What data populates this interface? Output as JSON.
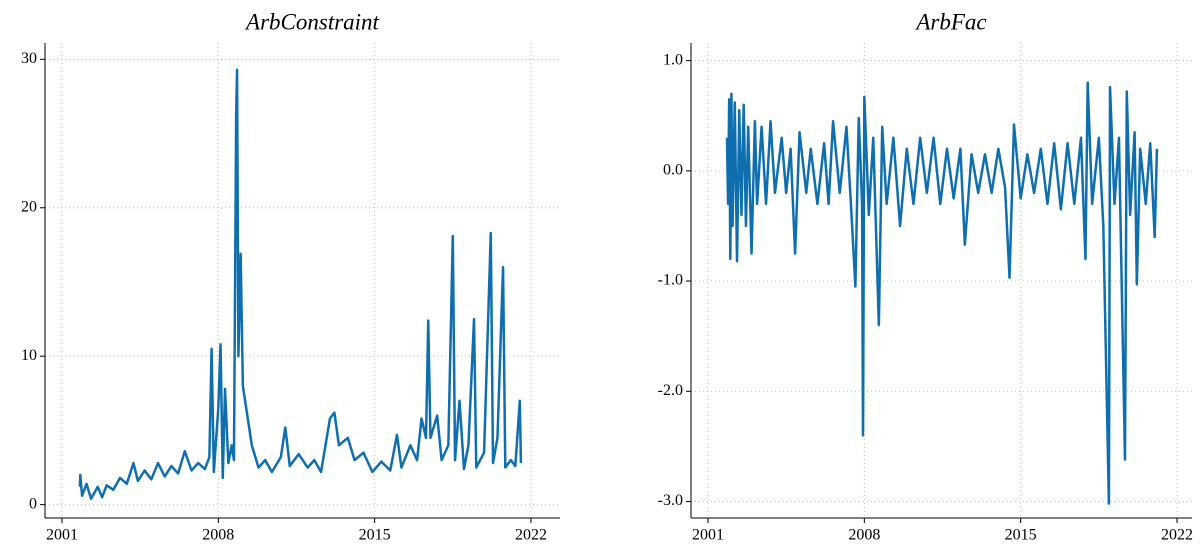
{
  "chart_data": [
    {
      "type": "line",
      "title": "ArbConstraint",
      "color": "#0f6fae",
      "grid": true,
      "xlim": [
        2000.24,
        2023.3
      ],
      "ylim": [
        -0.9,
        31.1
      ],
      "xticks": [
        2001,
        2008,
        2015,
        2022
      ],
      "yticks": [
        0,
        10,
        20,
        30
      ],
      "x": [
        2001.8,
        2001.82,
        2001.9,
        2002.1,
        2002.3,
        2002.6,
        2002.8,
        2003.0,
        2003.3,
        2003.6,
        2003.9,
        2004.2,
        2004.4,
        2004.7,
        2005.0,
        2005.3,
        2005.6,
        2005.9,
        2006.2,
        2006.5,
        2006.8,
        2007.1,
        2007.4,
        2007.6,
        2007.7,
        2007.8,
        2008.0,
        2008.1,
        2008.2,
        2008.3,
        2008.45,
        2008.6,
        2008.7,
        2008.8,
        2008.84,
        2008.9,
        2009.0,
        2009.1,
        2009.3,
        2009.5,
        2009.8,
        2010.1,
        2010.4,
        2010.8,
        2011.0,
        2011.2,
        2011.6,
        2012.0,
        2012.3,
        2012.6,
        2013.0,
        2013.2,
        2013.4,
        2013.8,
        2014.1,
        2014.5,
        2014.9,
        2015.3,
        2015.7,
        2016.0,
        2016.2,
        2016.6,
        2016.9,
        2017.1,
        2017.3,
        2017.4,
        2017.5,
        2017.8,
        2018.0,
        2018.3,
        2018.5,
        2018.6,
        2018.8,
        2019.0,
        2019.2,
        2019.45,
        2019.55,
        2019.9,
        2020.2,
        2020.3,
        2020.5,
        2020.75,
        2020.85,
        2021.1,
        2021.3,
        2021.5,
        2021.55
      ],
      "values": [
        1.2,
        2.0,
        0.6,
        1.4,
        0.4,
        1.2,
        0.5,
        1.3,
        1.0,
        1.8,
        1.4,
        2.8,
        1.6,
        2.3,
        1.7,
        2.8,
        1.9,
        2.6,
        2.1,
        3.6,
        2.3,
        2.8,
        2.4,
        3.2,
        10.5,
        2.2,
        6.5,
        10.8,
        1.8,
        7.8,
        2.8,
        4.0,
        3.0,
        26.3,
        29.3,
        10,
        16.9,
        8,
        6,
        4,
        2.5,
        3.0,
        2.2,
        3.2,
        5.2,
        2.6,
        3.4,
        2.5,
        3.0,
        2.2,
        5.8,
        6.2,
        4.0,
        4.5,
        3.0,
        3.5,
        2.2,
        2.9,
        2.3,
        4.7,
        2.5,
        4.0,
        3.0,
        5.8,
        4.5,
        12.4,
        4.5,
        6.0,
        3.0,
        4.0,
        18.1,
        3.0,
        7.0,
        2.4,
        4.0,
        12.5,
        2.5,
        3.5,
        18.3,
        2.8,
        4.5,
        16.0,
        2.5,
        3.0,
        2.6,
        7.0,
        2.8
      ]
    },
    {
      "type": "line",
      "title": "ArbFac",
      "color": "#0f6fae",
      "grid": true,
      "xlim": [
        2000.24,
        2022.67
      ],
      "ylim": [
        -3.15,
        1.16
      ],
      "xticks": [
        2001,
        2008,
        2015,
        2022
      ],
      "yticks": [
        {
          "value": 1,
          "label": "1.0"
        },
        {
          "value": 0,
          "label": "0.0"
        },
        {
          "value": -1,
          "label": "-1.0"
        },
        {
          "value": -2,
          "label": "-2.0"
        },
        {
          "value": -3,
          "label": "-3.0"
        }
      ],
      "x": [
        2001.85,
        2001.9,
        2001.95,
        2002.0,
        2002.05,
        2002.1,
        2002.2,
        2002.3,
        2002.4,
        2002.5,
        2002.6,
        2002.7,
        2002.8,
        2002.95,
        2003.1,
        2003.2,
        2003.4,
        2003.6,
        2003.8,
        2004.0,
        2004.3,
        2004.5,
        2004.7,
        2004.9,
        2005.1,
        2005.4,
        2005.6,
        2005.9,
        2006.2,
        2006.4,
        2006.6,
        2006.9,
        2007.2,
        2007.4,
        2007.6,
        2007.75,
        2007.9,
        2007.94,
        2008.0,
        2008.2,
        2008.4,
        2008.65,
        2008.8,
        2009.0,
        2009.3,
        2009.6,
        2009.9,
        2010.2,
        2010.5,
        2010.8,
        2011.1,
        2011.4,
        2011.7,
        2012.0,
        2012.3,
        2012.5,
        2012.8,
        2013.1,
        2013.4,
        2013.7,
        2014.0,
        2014.3,
        2014.5,
        2014.7,
        2015.0,
        2015.3,
        2015.6,
        2015.9,
        2016.2,
        2016.5,
        2016.8,
        2017.1,
        2017.4,
        2017.7,
        2017.9,
        2018.0,
        2018.2,
        2018.5,
        2018.7,
        2018.95,
        2019.0,
        2019.2,
        2019.4,
        2019.67,
        2019.75,
        2019.9,
        2020.1,
        2020.2,
        2020.35,
        2020.6,
        2020.8,
        2021.0,
        2021.1
      ],
      "values": [
        0.3,
        -0.3,
        0.65,
        -0.8,
        0.7,
        -0.5,
        0.62,
        -0.82,
        0.55,
        -0.4,
        0.6,
        -0.5,
        0.4,
        -0.75,
        0.45,
        -0.3,
        0.4,
        -0.3,
        0.45,
        -0.2,
        0.3,
        -0.2,
        0.2,
        -0.75,
        0.35,
        -0.2,
        0.2,
        -0.3,
        0.25,
        -0.3,
        0.45,
        -0.2,
        0.4,
        -0.3,
        -1.05,
        0.48,
        -0.3,
        -2.4,
        0.67,
        -0.4,
        0.3,
        -1.4,
        0.4,
        -0.3,
        0.3,
        -0.5,
        0.2,
        -0.3,
        0.3,
        -0.2,
        0.3,
        -0.3,
        0.2,
        -0.25,
        0.2,
        -0.67,
        0.15,
        -0.2,
        0.15,
        -0.2,
        0.2,
        -0.15,
        -0.97,
        0.42,
        -0.25,
        0.15,
        -0.2,
        0.2,
        -0.3,
        0.25,
        -0.35,
        0.25,
        -0.3,
        0.3,
        -0.8,
        0.8,
        -0.3,
        0.3,
        -0.5,
        -3.02,
        0.76,
        -0.3,
        0.3,
        -2.62,
        0.72,
        -0.4,
        0.35,
        -1.03,
        0.2,
        -0.3,
        0.25,
        -0.6,
        0.2
      ]
    }
  ]
}
